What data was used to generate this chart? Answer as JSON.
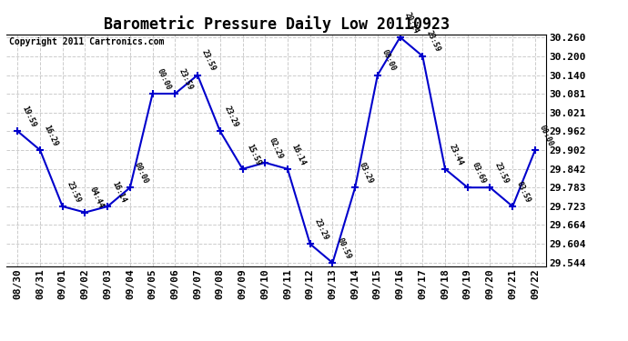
{
  "title": "Barometric Pressure Daily Low 20110923",
  "copyright": "Copyright 2011 Cartronics.com",
  "x_labels": [
    "08/30",
    "08/31",
    "09/01",
    "09/02",
    "09/03",
    "09/04",
    "09/05",
    "09/06",
    "09/07",
    "09/08",
    "09/09",
    "09/10",
    "09/11",
    "09/12",
    "09/13",
    "09/14",
    "09/15",
    "09/16",
    "09/17",
    "09/18",
    "09/19",
    "09/20",
    "09/21",
    "09/22"
  ],
  "x_values": [
    0,
    1,
    2,
    3,
    4,
    5,
    6,
    7,
    8,
    9,
    10,
    11,
    12,
    13,
    14,
    15,
    16,
    17,
    18,
    19,
    20,
    21,
    22,
    23
  ],
  "y_values": [
    29.962,
    29.902,
    29.723,
    29.704,
    29.723,
    29.783,
    30.081,
    30.081,
    30.14,
    29.962,
    29.842,
    29.862,
    29.842,
    29.604,
    29.544,
    29.783,
    30.14,
    30.26,
    30.2,
    29.842,
    29.783,
    29.783,
    29.723,
    29.902
  ],
  "point_labels": [
    "19:59",
    "16:29",
    "23:59",
    "04:44",
    "16:14",
    "00:00",
    "00:00",
    "23:59",
    "23:59",
    "23:29",
    "15:59",
    "02:29",
    "16:14",
    "23:29",
    "00:59",
    "03:29",
    "00:00",
    "20:14",
    "23:59",
    "23:44",
    "03:69",
    "23:59",
    "03:59",
    "00:00"
  ],
  "line_color": "#0000cc",
  "background_color": "#ffffff",
  "grid_color": "#cccccc",
  "ylim_min": 29.534,
  "ylim_max": 30.27,
  "yticks": [
    29.544,
    29.604,
    29.664,
    29.723,
    29.783,
    29.842,
    29.902,
    29.962,
    30.021,
    30.081,
    30.14,
    30.2,
    30.26
  ],
  "title_fontsize": 12,
  "tick_fontsize": 8,
  "label_fontsize": 6,
  "copyright_fontsize": 7
}
